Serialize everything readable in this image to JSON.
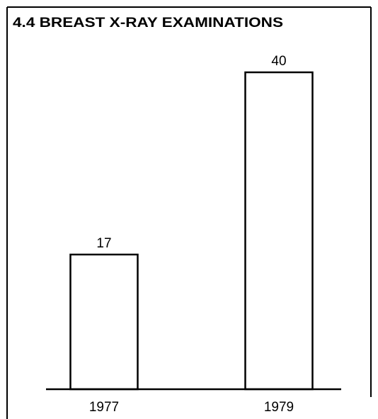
{
  "chart_data": {
    "type": "bar",
    "title": "4.4 BREAST X-RAY EXAMINATIONS",
    "categories": [
      "1977",
      "1979"
    ],
    "values": [
      17,
      40
    ],
    "color": "#ffffff"
  }
}
